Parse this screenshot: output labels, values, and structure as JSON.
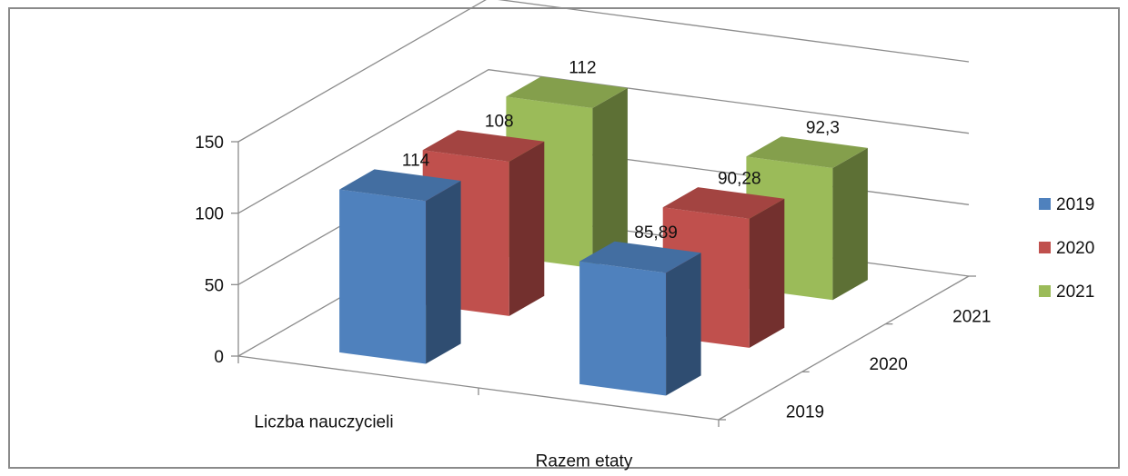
{
  "chart_data": {
    "type": "bar",
    "variant": "3d-column",
    "title": "",
    "categories": [
      "Liczba nauczycieli",
      "Razem etaty"
    ],
    "series": [
      {
        "name": "2019",
        "values": [
          114,
          85.89
        ],
        "labels": [
          "114",
          "85,89"
        ],
        "color": "#4F81BD"
      },
      {
        "name": "2020",
        "values": [
          108,
          90.28
        ],
        "labels": [
          "108",
          "90,28"
        ],
        "color": "#C0504D"
      },
      {
        "name": "2021",
        "values": [
          112,
          92.3
        ],
        "labels": [
          "112",
          "92,3"
        ],
        "color": "#9BBB59"
      }
    ],
    "ylim": [
      0,
      150
    ],
    "yticks": [
      0,
      50,
      100,
      150
    ],
    "ytick_labels": [
      "0",
      "50",
      "100",
      "150"
    ],
    "depth_labels": [
      "2019",
      "2020",
      "2021"
    ],
    "grid": true,
    "legend": {
      "position": "right",
      "entries": [
        "2019",
        "2020",
        "2021"
      ]
    }
  }
}
